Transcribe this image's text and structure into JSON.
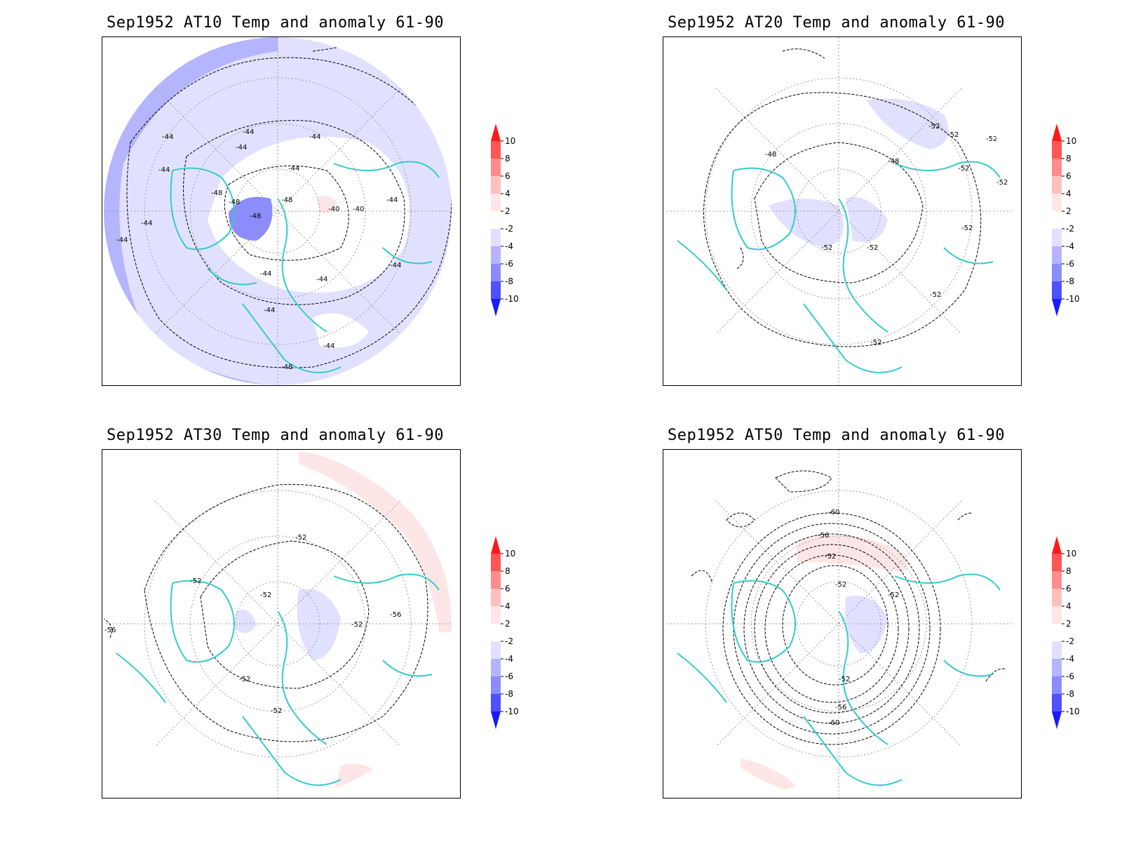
{
  "colorbar": {
    "labels": [
      "10",
      "8",
      "6",
      "4",
      "2",
      "-2",
      "-4",
      "-6",
      "-8",
      "-10"
    ],
    "colors": [
      "#ff1a1a",
      "#ff5555",
      "#ff8c8c",
      "#ffbfbf",
      "#ffe6e6",
      "#ffffff",
      "#e1e1ff",
      "#b4b4ff",
      "#8c8cff",
      "#5050ff",
      "#1a1aff"
    ]
  },
  "styles": {
    "coastline_color": "#33cccc",
    "contour_color": "#000000",
    "grid_color": "#999999"
  },
  "panels": [
    {
      "title": "Sep1952 AT10 Temp and anomaly 61-90",
      "contour_labels": [
        "-44",
        "-44",
        "-44",
        "-44",
        "-44",
        "-44",
        "-48",
        "-48",
        "-48",
        "-48",
        "-40",
        "-40",
        "-44",
        "-44",
        "-44",
        "-44",
        "-44",
        "-44",
        "-44",
        "-48",
        "-44"
      ]
    },
    {
      "title": "Sep1952 AT20 Temp and anomaly 61-90",
      "contour_labels": [
        "-52",
        "-52",
        "-52",
        "-48",
        "-52",
        "-52",
        "-52",
        "-52",
        "-52",
        "-52",
        "-52",
        "-48"
      ]
    },
    {
      "title": "Sep1952 AT30 Temp and anomaly 61-90",
      "contour_labels": [
        "-52",
        "-52",
        "-52",
        "-52",
        "-56",
        "-56",
        "-52",
        "-52"
      ]
    },
    {
      "title": "Sep1952 AT50 Temp and anomaly 61-90",
      "contour_labels": [
        "-60",
        "-56",
        "-52",
        "-52",
        "-52",
        "-56",
        "-60",
        "-52"
      ]
    }
  ]
}
